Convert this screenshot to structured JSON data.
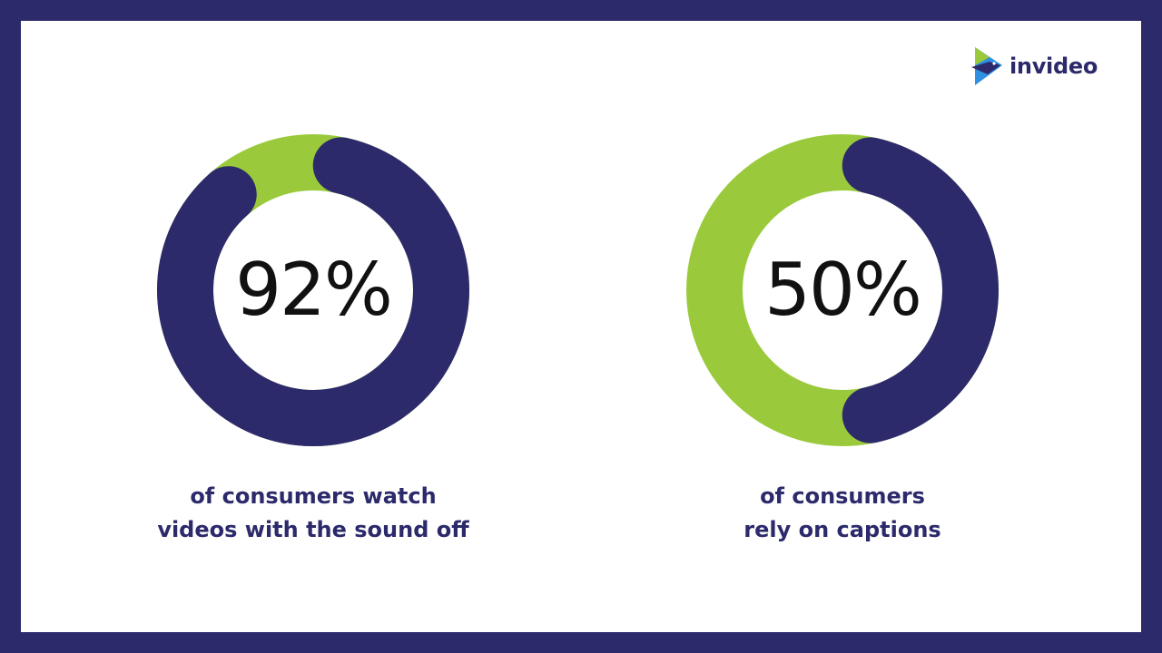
{
  "brand": {
    "name": "invideo",
    "icon": "invideo-logo-icon",
    "colors": {
      "navy": "#2c2a6b",
      "green": "#9aca3c",
      "blue": "#2f8fe0"
    }
  },
  "chart_data": [
    {
      "type": "pie",
      "style": "donut",
      "value_label": "92%",
      "caption_line1": "of consumers watch",
      "caption_line2": "videos with the sound off",
      "slices": [
        {
          "value": 92,
          "color": "#2c2a6b"
        },
        {
          "value": 8,
          "color": "#9aca3c"
        }
      ]
    },
    {
      "type": "pie",
      "style": "donut",
      "value_label": "50%",
      "caption_line1": "of consumers",
      "caption_line2": "rely on captions",
      "slices": [
        {
          "value": 50,
          "color": "#2c2a6b"
        },
        {
          "value": 50,
          "color": "#9aca3c"
        }
      ]
    }
  ]
}
